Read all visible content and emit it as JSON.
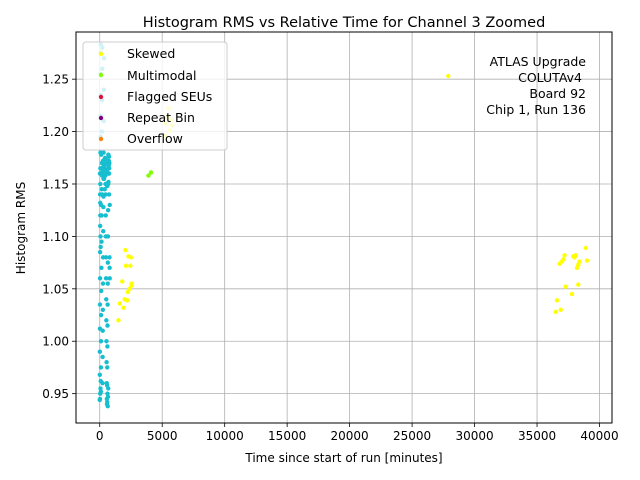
{
  "chart_data": {
    "type": "scatter",
    "title": "Histogram RMS vs Relative Time for Channel 3 Zoomed",
    "xlabel": "Time since start of run [minutes]",
    "ylabel": "Histogram RMS",
    "xlim": [
      -1900,
      41000
    ],
    "ylim": [
      0.922,
      1.295
    ],
    "xticks": [
      0,
      5000,
      10000,
      15000,
      20000,
      25000,
      30000,
      35000,
      40000
    ],
    "yticks": [
      0.95,
      1.0,
      1.05,
      1.1,
      1.15,
      1.2,
      1.25
    ],
    "grid": true,
    "legend_position": "upper-left",
    "annotation": [
      "ATLAS Upgrade",
      "COLUTAv4",
      "Board 92",
      "Chip 1, Run 136"
    ],
    "colors": {
      "main": "#17becf",
      "skewed": "#ffff00",
      "multimodal": "#7fff00",
      "flagged": "#dc143c",
      "repeat": "#800080",
      "overflow": "#ff7f0e"
    },
    "series": [
      {
        "name": "Skewed",
        "color": "#ffff00",
        "points": [
          [
            1500,
            1.02
          ],
          [
            1600,
            1.036
          ],
          [
            1800,
            1.057
          ],
          [
            1900,
            1.032
          ],
          [
            2000,
            1.04
          ],
          [
            2050,
            1.087
          ],
          [
            2100,
            1.072
          ],
          [
            2200,
            1.039
          ],
          [
            2250,
            1.047
          ],
          [
            2300,
            1.081
          ],
          [
            2400,
            1.05
          ],
          [
            2450,
            1.072
          ],
          [
            2500,
            1.08
          ],
          [
            2550,
            1.053
          ],
          [
            2550,
            1.055
          ],
          [
            5200,
            1.196
          ],
          [
            5300,
            1.208
          ],
          [
            5400,
            1.214
          ],
          [
            5500,
            1.222
          ],
          [
            5600,
            1.201
          ],
          [
            5700,
            1.211
          ],
          [
            5800,
            1.206
          ],
          [
            27900,
            1.253
          ],
          [
            36500,
            1.028
          ],
          [
            36600,
            1.039
          ],
          [
            36800,
            1.074
          ],
          [
            36900,
            1.03
          ],
          [
            37000,
            1.076
          ],
          [
            37100,
            1.078
          ],
          [
            37200,
            1.082
          ],
          [
            37300,
            1.052
          ],
          [
            37800,
            1.045
          ],
          [
            37900,
            1.081
          ],
          [
            38000,
            1.08
          ],
          [
            38100,
            1.082
          ],
          [
            38200,
            1.07
          ],
          [
            38300,
            1.054
          ],
          [
            38300,
            1.073
          ],
          [
            38400,
            1.076
          ],
          [
            38900,
            1.089
          ],
          [
            39000,
            1.077
          ]
        ]
      },
      {
        "name": "Multimodal",
        "color": "#7fff00",
        "points": [
          [
            3900,
            1.158
          ],
          [
            4100,
            1.161
          ]
        ]
      },
      {
        "name": "Flagged SEUs",
        "color": "#dc143c",
        "points": []
      },
      {
        "name": "Repeat Bin",
        "color": "#800080",
        "points": []
      },
      {
        "name": "Overflow",
        "color": "#ff7f0e",
        "points": []
      },
      {
        "name": "",
        "color": "#17becf",
        "points": [
          [
            0,
            0.944
          ],
          [
            5,
            0.968
          ],
          [
            10,
            0.99
          ],
          [
            15,
            1.012
          ],
          [
            20,
            1.035
          ],
          [
            25,
            1.06
          ],
          [
            30,
            1.085
          ],
          [
            35,
            1.11
          ],
          [
            40,
            1.132
          ],
          [
            45,
            1.15
          ],
          [
            50,
            1.165
          ],
          [
            55,
            1.18
          ],
          [
            60,
            1.195
          ],
          [
            65,
            1.215
          ],
          [
            70,
            1.235
          ],
          [
            75,
            1.255
          ],
          [
            80,
            1.275
          ],
          [
            85,
            1.283
          ],
          [
            90,
            0.952
          ],
          [
            95,
            0.975
          ],
          [
            100,
            1.0
          ],
          [
            110,
            1.025
          ],
          [
            120,
            1.048
          ],
          [
            130,
            1.07
          ],
          [
            140,
            1.095
          ],
          [
            150,
            1.12
          ],
          [
            160,
            1.145
          ],
          [
            170,
            1.17
          ],
          [
            180,
            1.2
          ],
          [
            190,
            1.23
          ],
          [
            200,
            1.26
          ],
          [
            210,
            1.28
          ],
          [
            220,
            0.96
          ],
          [
            230,
            0.985
          ],
          [
            240,
            1.01
          ],
          [
            250,
            1.03
          ],
          [
            260,
            1.055
          ],
          [
            270,
            1.08
          ],
          [
            280,
            1.105
          ],
          [
            290,
            1.128
          ],
          [
            300,
            1.155
          ],
          [
            310,
            1.18
          ],
          [
            320,
            1.21
          ],
          [
            330,
            1.24
          ],
          [
            340,
            1.27
          ],
          [
            350,
            1.155
          ],
          [
            360,
            1.16
          ],
          [
            370,
            1.162
          ],
          [
            380,
            1.165
          ],
          [
            390,
            1.17
          ],
          [
            400,
            1.172
          ],
          [
            410,
            1.16
          ],
          [
            420,
            1.168
          ],
          [
            430,
            1.175
          ],
          [
            440,
            1.163
          ],
          [
            450,
            1.158
          ],
          [
            460,
            1.15
          ],
          [
            470,
            1.14
          ],
          [
            480,
            1.12
          ],
          [
            490,
            1.1
          ],
          [
            500,
            1.08
          ],
          [
            510,
            1.06
          ],
          [
            520,
            1.04
          ],
          [
            530,
            1.02
          ],
          [
            540,
            1.0
          ],
          [
            550,
            0.98
          ],
          [
            560,
            0.96
          ],
          [
            570,
            0.945
          ],
          [
            580,
            0.94
          ],
          [
            590,
            0.958
          ],
          [
            600,
            0.975
          ],
          [
            610,
            0.995
          ],
          [
            620,
            1.015
          ],
          [
            630,
            1.035
          ],
          [
            640,
            1.055
          ],
          [
            650,
            1.075
          ],
          [
            660,
            1.1
          ],
          [
            670,
            1.125
          ],
          [
            680,
            1.15
          ],
          [
            690,
            1.17
          ],
          [
            700,
            1.165
          ],
          [
            710,
            1.16
          ],
          [
            720,
            1.168
          ],
          [
            730,
            1.172
          ],
          [
            740,
            1.176
          ],
          [
            750,
            1.16
          ],
          [
            760,
            1.165
          ],
          [
            770,
            1.17
          ],
          [
            780,
            1.08
          ],
          [
            790,
            1.07
          ],
          [
            800,
            1.06
          ],
          [
            120,
            1.178
          ],
          [
            260,
            1.172
          ],
          [
            330,
            1.166
          ],
          [
            470,
            1.174
          ],
          [
            560,
            1.163
          ],
          [
            690,
            1.178
          ],
          [
            15,
            1.16
          ],
          [
            45,
            1.12
          ],
          [
            75,
            1.09
          ],
          [
            105,
            1.16
          ],
          [
            135,
            1.165
          ],
          [
            165,
            1.159
          ],
          [
            195,
            1.158
          ],
          [
            225,
            1.162
          ],
          [
            255,
            1.164
          ],
          [
            285,
            1.17
          ],
          [
            315,
            1.168
          ],
          [
            345,
            1.173
          ],
          [
            600,
            0.942
          ],
          [
            620,
            0.95
          ],
          [
            640,
            0.938
          ],
          [
            660,
            0.947
          ],
          [
            680,
            0.955
          ],
          [
            20,
            0.945
          ],
          [
            40,
            0.95
          ],
          [
            60,
            0.955
          ],
          [
            80,
            0.962
          ],
          [
            30,
            1.14
          ],
          [
            60,
            1.1
          ],
          [
            100,
            1.13
          ],
          [
            200,
            1.14
          ],
          [
            300,
            1.138
          ],
          [
            400,
            1.145
          ],
          [
            500,
            1.15
          ],
          [
            600,
            1.148
          ],
          [
            700,
            1.152
          ],
          [
            750,
            1.14
          ],
          [
            800,
            1.13
          ]
        ]
      }
    ]
  }
}
